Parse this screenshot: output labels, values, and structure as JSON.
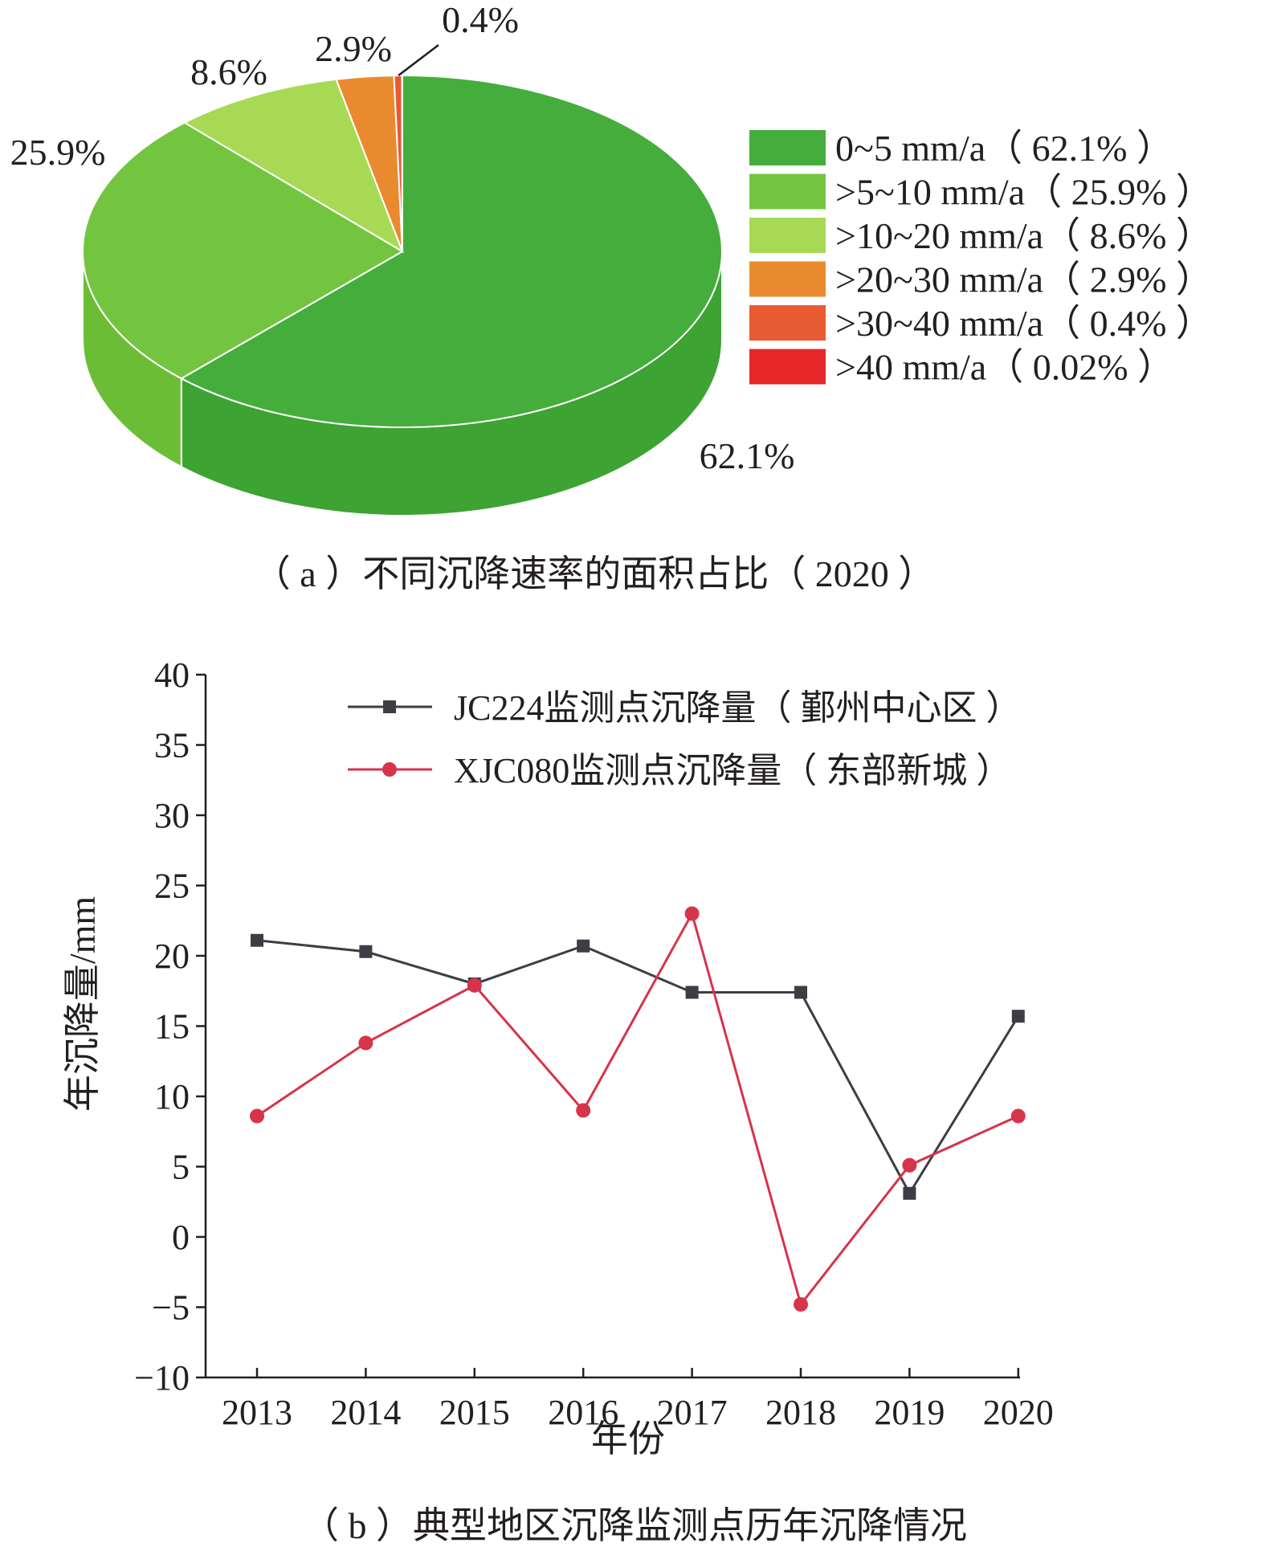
{
  "chart_data": [
    {
      "type": "pie",
      "caption": "（ a ）不同沉降速率的面积占比（ 2020 ）",
      "slices": [
        {
          "label": "0~5 mm/a（ 62.1% ）",
          "value": 62.1,
          "data_label": "62.1%",
          "color": "#45ad3c",
          "side_color": "#3da333"
        },
        {
          "label": ">5~10 mm/a（ 25.9% ）",
          "value": 25.9,
          "data_label": "25.9%",
          "color": "#73c53f",
          "side_color": "#6bbd36"
        },
        {
          "label": ">10~20 mm/a（ 8.6% ）",
          "value": 8.6,
          "data_label": "8.6%",
          "color": "#a8d955",
          "side_color": "#9bcf4a"
        },
        {
          "label": ">20~30 mm/a（ 2.9% ）",
          "value": 2.9,
          "data_label": "2.9%",
          "color": "#ea8a2e",
          "side_color": "#d97a22"
        },
        {
          "label": ">30~40 mm/a（ 0.4% ）",
          "value": 0.4,
          "data_label": "0.4%",
          "color": "#e85a32",
          "side_color": "#d44e28"
        },
        {
          "label": ">40 mm/a（ 0.02% ）",
          "value": 0.02,
          "data_label": "",
          "color": "#e8272a",
          "side_color": "#d0202a"
        }
      ]
    },
    {
      "type": "line",
      "caption": "（ b ）典型地区沉降监测点历年沉降情况",
      "xlabel": "年份",
      "ylabel": "年沉降量/mm",
      "x": [
        "2013",
        "2014",
        "2015",
        "2016",
        "2017",
        "2018",
        "2019",
        "2020"
      ],
      "ylim": [
        -10,
        40
      ],
      "yticks": [
        "40",
        "35",
        "30",
        "25",
        "20",
        "15",
        "10",
        "5",
        "0",
        "−5",
        "−10"
      ],
      "legend_position": "top",
      "series": [
        {
          "name": "JC224监测点沉降量（ 鄞州中心区 ）",
          "marker": "square",
          "color": "#3d3d45",
          "values": [
            21.1,
            20.3,
            18.0,
            20.7,
            17.4,
            17.4,
            3.1,
            15.7
          ]
        },
        {
          "name": "XJC080监测点沉降量（ 东部新城 ）",
          "marker": "circle",
          "color": "#d6344a",
          "values": [
            8.6,
            13.8,
            17.9,
            9.0,
            23.0,
            -4.8,
            5.1,
            8.6
          ]
        }
      ]
    }
  ]
}
